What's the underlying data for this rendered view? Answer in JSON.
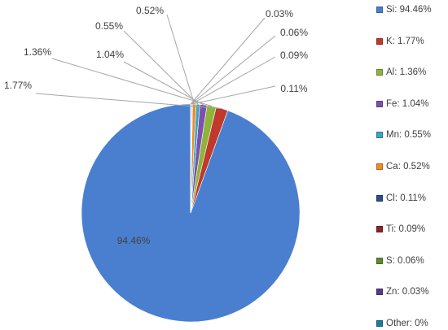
{
  "chart_data": {
    "type": "pie",
    "title": "",
    "series": [
      {
        "label": "Si",
        "value": 94.46,
        "data_label": "94.46%",
        "legend": "Si: 94.46%",
        "color": "#4a7fd0"
      },
      {
        "label": "K",
        "value": 1.77,
        "data_label": "1.77%",
        "legend": "K: 1.77%",
        "color": "#c0392b"
      },
      {
        "label": "Al",
        "value": 1.36,
        "data_label": "1.36%",
        "legend": "Al: 1.36%",
        "color": "#8db33a"
      },
      {
        "label": "Fe",
        "value": 1.04,
        "data_label": "1.04%",
        "legend": "Fe: 1.04%",
        "color": "#7b52ab"
      },
      {
        "label": "Mn",
        "value": 0.55,
        "data_label": "0.55%",
        "legend": "Mn: 0.55%",
        "color": "#3aa6c6"
      },
      {
        "label": "Ca",
        "value": 0.52,
        "data_label": "0.52%",
        "legend": "Ca: 0.52%",
        "color": "#f08a24"
      },
      {
        "label": "Cl",
        "value": 0.11,
        "data_label": "0.11%",
        "legend": "Cl: 0.11%",
        "color": "#2c4d86"
      },
      {
        "label": "Ti",
        "value": 0.09,
        "data_label": "0.09%",
        "legend": "Ti: 0.09%",
        "color": "#8b2424"
      },
      {
        "label": "S",
        "value": 0.06,
        "data_label": "0.06%",
        "legend": "S: 0.06%",
        "color": "#5e8a2a"
      },
      {
        "label": "Zn",
        "value": 0.03,
        "data_label": "0.03%",
        "legend": "Zn: 0.03%",
        "color": "#5a3a8a"
      },
      {
        "label": "Other",
        "value": 0,
        "data_label": "",
        "legend": "Other: 0%",
        "color": "#1f7a99"
      }
    ],
    "legend_position": "right"
  }
}
